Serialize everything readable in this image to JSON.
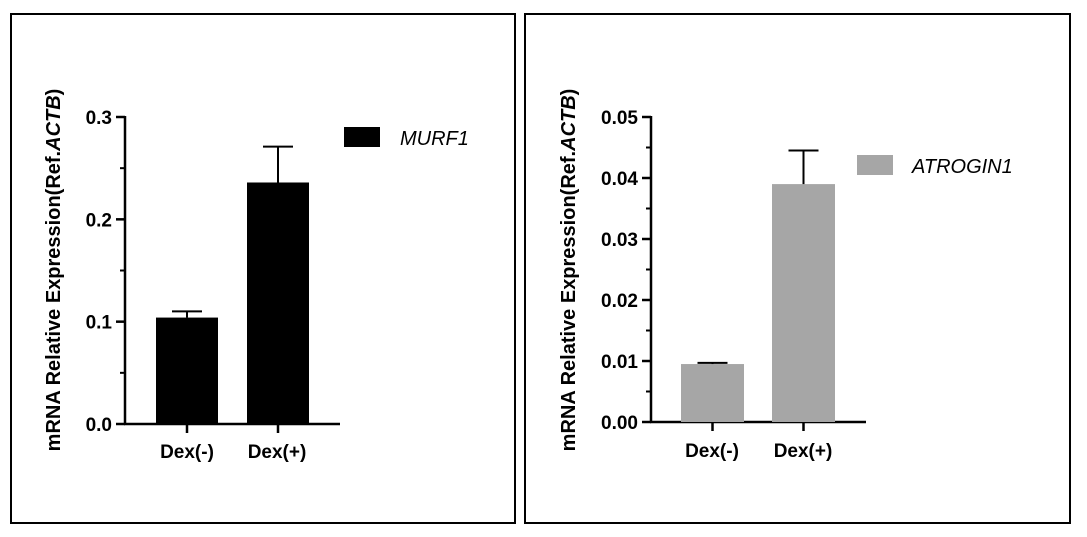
{
  "chart_data": [
    {
      "type": "bar",
      "categories": [
        "Dex(-)",
        "Dex(+)"
      ],
      "series": [
        {
          "name": "MURF1",
          "values": [
            0.104,
            0.236
          ],
          "errors": [
            0.006,
            0.035
          ],
          "color": "#000000"
        }
      ],
      "ylabel_prefix": "mRNA Relative Expression(Ref.",
      "ylabel_gene": "ACTB",
      "ylabel_suffix": ")",
      "ylim": [
        0,
        0.3
      ],
      "yticks": [
        "0.0",
        "0.1",
        "0.2",
        "0.3"
      ],
      "ytick_values": [
        0,
        0.1,
        0.2,
        0.3
      ],
      "minor_ticks_per_major": 2,
      "legend_position": "top-right",
      "grid": false
    },
    {
      "type": "bar",
      "categories": [
        "Dex(-)",
        "Dex(+)"
      ],
      "series": [
        {
          "name": "ATROGIN1",
          "values": [
            0.0095,
            0.039
          ],
          "errors": [
            0.0002,
            0.0055
          ],
          "color": "#a6a6a6"
        }
      ],
      "ylabel_prefix": "mRNA Relative Expression(Ref.",
      "ylabel_gene": "ACTB",
      "ylabel_suffix": ")",
      "ylim": [
        0,
        0.05
      ],
      "yticks": [
        "0.00",
        "0.01",
        "0.02",
        "0.03",
        "0.04",
        "0.05"
      ],
      "ytick_values": [
        0,
        0.01,
        0.02,
        0.03,
        0.04,
        0.05
      ],
      "minor_ticks_per_major": 2,
      "legend_position": "top-right",
      "grid": false
    }
  ]
}
